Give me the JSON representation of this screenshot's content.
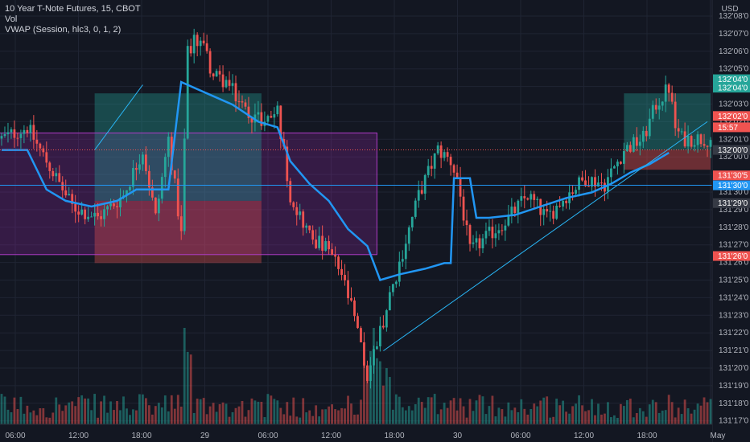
{
  "legend": {
    "title": "10 Year T-Note Futures, 15, CBOT",
    "volume": "Vol",
    "vwap": "VWAP (Session, hlc3, 0, 1, 2)"
  },
  "currency": "USD",
  "colors": {
    "background": "#131722",
    "grid": "#1f2433",
    "up": "#26a69a",
    "down": "#ef5350",
    "vwap": "#2196f3",
    "trendline": "#29b6f6"
  },
  "price_axis": {
    "labels": [
      "132'08'0",
      "132'07'0",
      "132'06'0",
      "132'05'0",
      "132'04'0",
      "132'03'0",
      "132'02'0",
      "132'01'0",
      "132'00'0",
      "131'31'0",
      "131'30'0",
      "131'29'0",
      "131'28'0",
      "131'27'0",
      "131'26'0",
      "131'25'0",
      "131'24'0",
      "131'23'0",
      "131'22'0",
      "131'21'0",
      "131'20'0",
      "131'19'0",
      "131'18'0",
      "131'17'0"
    ],
    "tags": [
      {
        "text": "132'04'0",
        "value": 132.125,
        "color": "#26a69a"
      },
      {
        "text": "132'04'0",
        "value": 132.11,
        "color": "#26a69a"
      },
      {
        "text": "132'02'0",
        "value": 132.06,
        "color": "#ef5350"
      },
      {
        "text": "15:57",
        "value": 132.04,
        "color": "#ef5350"
      },
      {
        "text": "132'00'0",
        "value": 132.0,
        "color": "#363a45"
      },
      {
        "text": "131'30'5",
        "value": 131.955,
        "color": "#ef5350"
      },
      {
        "text": "131'30'0",
        "value": 131.9375,
        "color": "#2196f3"
      },
      {
        "text": "131'29'0",
        "value": 131.906,
        "color": "#363a45"
      },
      {
        "text": "131'26'0",
        "value": 131.8125,
        "color": "#ef5350"
      }
    ]
  },
  "time_axis": {
    "labels": [
      "06:00",
      "12:00",
      "18:00",
      "29",
      "06:00",
      "12:00",
      "18:00",
      "30",
      "06:00",
      "12:00",
      "18:00",
      "May"
    ]
  },
  "chart_data": {
    "type": "candlestick",
    "y_unit": "price (handle.32nds expressed as decimal)",
    "ylim": [
      131.515,
      132.265
    ],
    "x_axis_labels": [
      "06:00",
      "12:00",
      "18:00",
      "29",
      "06:00",
      "12:00",
      "18:00",
      "30",
      "06:00",
      "12:00",
      "18:00",
      "May"
    ],
    "anchors": [
      [
        0,
        132.02
      ],
      [
        8,
        132.04
      ],
      [
        14,
        131.98
      ],
      [
        22,
        131.9
      ],
      [
        30,
        131.88
      ],
      [
        38,
        131.92
      ],
      [
        44,
        132.0
      ],
      [
        48,
        131.88
      ],
      [
        52,
        132.02
      ],
      [
        56,
        131.85
      ],
      [
        58,
        132.18
      ],
      [
        62,
        132.2
      ],
      [
        66,
        132.13
      ],
      [
        70,
        132.12
      ],
      [
        76,
        132.07
      ],
      [
        82,
        132.05
      ],
      [
        86,
        132.07
      ],
      [
        90,
        131.92
      ],
      [
        96,
        131.85
      ],
      [
        102,
        131.82
      ],
      [
        106,
        131.78
      ],
      [
        110,
        131.7
      ],
      [
        114,
        131.6
      ],
      [
        118,
        131.68
      ],
      [
        124,
        131.8
      ],
      [
        130,
        131.92
      ],
      [
        136,
        132.0
      ],
      [
        140,
        131.98
      ],
      [
        142,
        131.95
      ],
      [
        146,
        131.82
      ],
      [
        152,
        131.85
      ],
      [
        158,
        131.88
      ],
      [
        164,
        131.92
      ],
      [
        170,
        131.88
      ],
      [
        176,
        131.92
      ],
      [
        182,
        131.95
      ],
      [
        188,
        131.94
      ],
      [
        194,
        132.0
      ],
      [
        200,
        132.02
      ],
      [
        204,
        132.08
      ],
      [
        208,
        132.11
      ],
      [
        210,
        132.04
      ],
      [
        212,
        132.02
      ]
    ],
    "vwap": [
      [
        0,
        132.0
      ],
      [
        8,
        132.0
      ],
      [
        14,
        131.93
      ],
      [
        20,
        131.91
      ],
      [
        28,
        131.9
      ],
      [
        36,
        131.91
      ],
      [
        42,
        131.93
      ],
      [
        50,
        131.93
      ],
      [
        52,
        131.93
      ],
      [
        56,
        132.12
      ],
      [
        64,
        132.1
      ],
      [
        72,
        132.08
      ],
      [
        80,
        132.05
      ],
      [
        86,
        132.04
      ],
      [
        90,
        131.98
      ],
      [
        96,
        131.94
      ],
      [
        102,
        131.91
      ],
      [
        108,
        131.86
      ],
      [
        114,
        131.83
      ],
      [
        118,
        131.77
      ],
      [
        124,
        131.78
      ],
      [
        132,
        131.79
      ],
      [
        138,
        131.8
      ],
      [
        140,
        131.8
      ],
      [
        141,
        131.95
      ],
      [
        144,
        131.95
      ],
      [
        146,
        131.95
      ],
      [
        148,
        131.88
      ],
      [
        152,
        131.88
      ],
      [
        160,
        131.885
      ],
      [
        168,
        131.9
      ],
      [
        176,
        131.915
      ],
      [
        184,
        131.925
      ],
      [
        190,
        131.94
      ],
      [
        196,
        131.96
      ],
      [
        202,
        131.975
      ],
      [
        208,
        131.995
      ]
    ],
    "trendlines": [
      {
        "from": [
          119,
          131.645
        ],
        "to": [
          220,
          132.05
        ]
      },
      {
        "from": [
          29,
          132.0
        ],
        "to": [
          44,
          132.115
        ]
      }
    ],
    "zones": [
      {
        "x0": -1,
        "x1": 117,
        "y0": 131.815,
        "y1": 132.03,
        "color": "#9c27b0",
        "opacity": 0.25
      },
      {
        "x0": 29,
        "x1": 81,
        "y0": 131.91,
        "y1": 132.1,
        "color": "#26a69a",
        "opacity": 0.35
      },
      {
        "x0": 29,
        "x1": 81,
        "y0": 131.8,
        "y1": 131.91,
        "color": "#ef5350",
        "opacity": 0.35
      },
      {
        "x0": 194,
        "x1": 221,
        "y0": 132.0,
        "y1": 132.1,
        "color": "#26a69a",
        "opacity": 0.35
      },
      {
        "x0": 194,
        "x1": 221,
        "y0": 131.965,
        "y1": 132.0,
        "color": "#ef5350",
        "opacity": 0.4
      }
    ]
  }
}
